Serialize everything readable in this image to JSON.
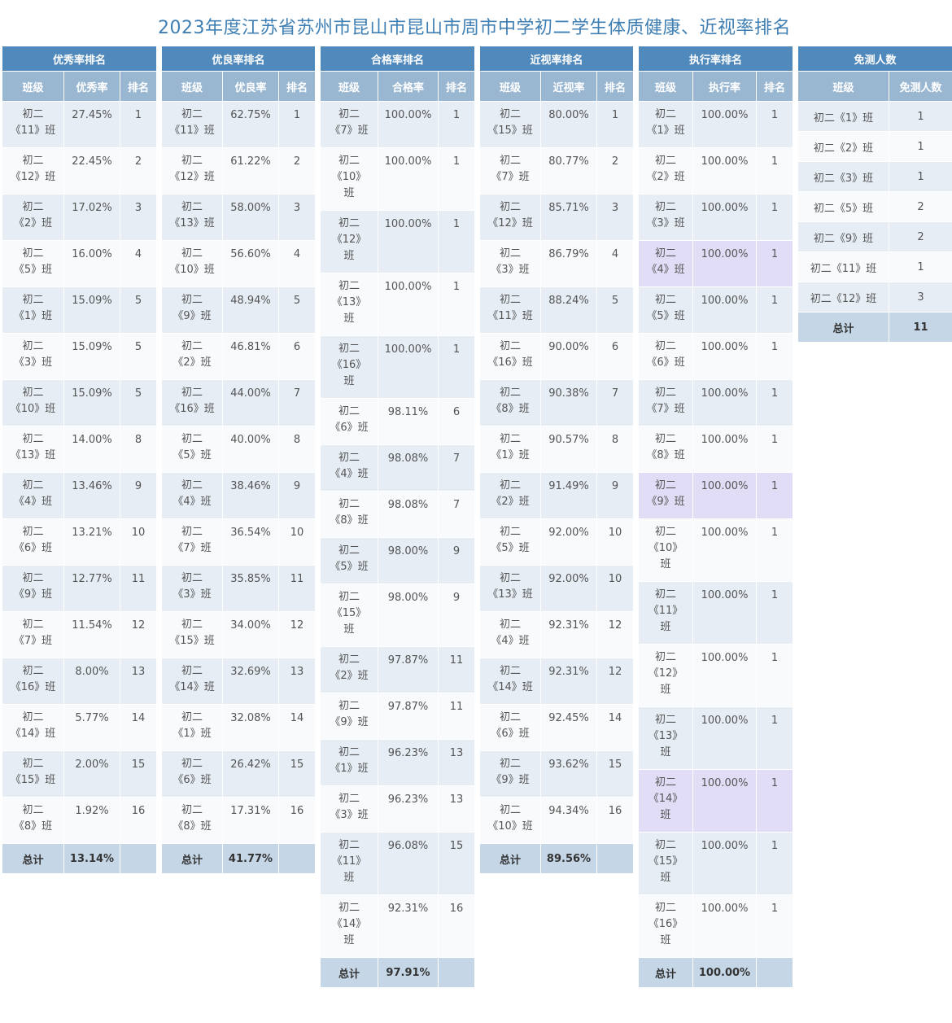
{
  "title": "2023年度江苏省苏州市昆山市昆山市周市中学初二学生体质健康、近视率排名",
  "tables": {
    "excellent": {
      "header": "优秀率排名",
      "cols": [
        "班级",
        "优秀率",
        "排名"
      ],
      "rows": [
        [
          "初二",
          "《11》班",
          "27.45%",
          "1"
        ],
        [
          "初二",
          "《12》班",
          "22.45%",
          "2"
        ],
        [
          "初二",
          "《2》班",
          "17.02%",
          "3"
        ],
        [
          "初二",
          "《5》班",
          "16.00%",
          "4"
        ],
        [
          "初二",
          "《1》班",
          "15.09%",
          "5"
        ],
        [
          "初二",
          "《3》班",
          "15.09%",
          "5"
        ],
        [
          "初二",
          "《10》班",
          "15.09%",
          "5"
        ],
        [
          "初二",
          "《13》班",
          "14.00%",
          "8"
        ],
        [
          "初二",
          "《4》班",
          "13.46%",
          "9"
        ],
        [
          "初二",
          "《6》班",
          "13.21%",
          "10"
        ],
        [
          "初二",
          "《9》班",
          "12.77%",
          "11"
        ],
        [
          "初二",
          "《7》班",
          "11.54%",
          "12"
        ],
        [
          "初二",
          "《16》班",
          "8.00%",
          "13"
        ],
        [
          "初二",
          "《14》班",
          "5.77%",
          "14"
        ],
        [
          "初二",
          "《15》班",
          "2.00%",
          "15"
        ],
        [
          "初二",
          "《8》班",
          "1.92%",
          "16"
        ]
      ],
      "total_label": "总计",
      "total": "13.14%"
    },
    "good": {
      "header": "优良率排名",
      "cols": [
        "班级",
        "优良率",
        "排名"
      ],
      "rows": [
        [
          "初二",
          "《11》班",
          "62.75%",
          "1"
        ],
        [
          "初二",
          "《12》班",
          "61.22%",
          "2"
        ],
        [
          "初二",
          "《13》班",
          "58.00%",
          "3"
        ],
        [
          "初二",
          "《10》班",
          "56.60%",
          "4"
        ],
        [
          "初二",
          "《9》班",
          "48.94%",
          "5"
        ],
        [
          "初二",
          "《2》班",
          "46.81%",
          "6"
        ],
        [
          "初二",
          "《16》班",
          "44.00%",
          "7"
        ],
        [
          "初二",
          "《5》班",
          "40.00%",
          "8"
        ],
        [
          "初二",
          "《4》班",
          "38.46%",
          "9"
        ],
        [
          "初二",
          "《7》班",
          "36.54%",
          "10"
        ],
        [
          "初二",
          "《3》班",
          "35.85%",
          "11"
        ],
        [
          "初二",
          "《15》班",
          "34.00%",
          "12"
        ],
        [
          "初二",
          "《14》班",
          "32.69%",
          "13"
        ],
        [
          "初二",
          "《1》班",
          "32.08%",
          "14"
        ],
        [
          "初二",
          "《6》班",
          "26.42%",
          "15"
        ],
        [
          "初二",
          "《8》班",
          "17.31%",
          "16"
        ]
      ],
      "total_label": "总计",
      "total": "41.77%"
    },
    "pass": {
      "header": "合格率排名",
      "cols": [
        "班级",
        "合格率",
        "排名"
      ],
      "rows": [
        [
          "初二",
          "《7》班",
          "100.00%",
          "1"
        ],
        [
          "初二",
          "《10》",
          "班",
          "100.00%",
          "1"
        ],
        [
          "初二",
          "《12》",
          "班",
          "100.00%",
          "1"
        ],
        [
          "初二",
          "《13》",
          "班",
          "100.00%",
          "1"
        ],
        [
          "初二",
          "《16》",
          "班",
          "100.00%",
          "1"
        ],
        [
          "初二",
          "《6》班",
          "98.11%",
          "6"
        ],
        [
          "初二",
          "《4》班",
          "98.08%",
          "7"
        ],
        [
          "初二",
          "《8》班",
          "98.08%",
          "7"
        ],
        [
          "初二",
          "《5》班",
          "98.00%",
          "9"
        ],
        [
          "初二",
          "《15》",
          "班",
          "98.00%",
          "9"
        ],
        [
          "初二",
          "《2》班",
          "97.87%",
          "11"
        ],
        [
          "初二",
          "《9》班",
          "97.87%",
          "11"
        ],
        [
          "初二",
          "《1》班",
          "96.23%",
          "13"
        ],
        [
          "初二",
          "《3》班",
          "96.23%",
          "13"
        ],
        [
          "初二",
          "《11》",
          "班",
          "96.08%",
          "15"
        ],
        [
          "初二",
          "《14》",
          "班",
          "92.31%",
          "16"
        ]
      ],
      "total_label": "总计",
      "total": "97.91%"
    },
    "myopia": {
      "header": "近视率排名",
      "cols": [
        "班级",
        "近视率",
        "排名"
      ],
      "rows": [
        [
          "初二",
          "《15》班",
          "80.00%",
          "1"
        ],
        [
          "初二",
          "《7》班",
          "80.77%",
          "2"
        ],
        [
          "初二",
          "《12》班",
          "85.71%",
          "3"
        ],
        [
          "初二",
          "《3》班",
          "86.79%",
          "4"
        ],
        [
          "初二",
          "《11》班",
          "88.24%",
          "5"
        ],
        [
          "初二",
          "《16》班",
          "90.00%",
          "6"
        ],
        [
          "初二",
          "《8》班",
          "90.38%",
          "7"
        ],
        [
          "初二",
          "《1》班",
          "90.57%",
          "8"
        ],
        [
          "初二",
          "《2》班",
          "91.49%",
          "9"
        ],
        [
          "初二",
          "《5》班",
          "92.00%",
          "10"
        ],
        [
          "初二",
          "《13》班",
          "92.00%",
          "10"
        ],
        [
          "初二",
          "《4》班",
          "92.31%",
          "12"
        ],
        [
          "初二",
          "《14》班",
          "92.31%",
          "12"
        ],
        [
          "初二",
          "《6》班",
          "92.45%",
          "14"
        ],
        [
          "初二",
          "《9》班",
          "93.62%",
          "15"
        ],
        [
          "初二",
          "《10》班",
          "94.34%",
          "16"
        ]
      ],
      "total_label": "总计",
      "total": "89.56%"
    },
    "execution": {
      "header": "执行率排名",
      "cols": [
        "班级",
        "执行率",
        "排名"
      ],
      "rows": [
        [
          "初二",
          "《1》班",
          "100.00%",
          "1"
        ],
        [
          "初二",
          "《2》班",
          "100.00%",
          "1"
        ],
        [
          "初二",
          "《3》班",
          "100.00%",
          "1"
        ],
        [
          "初二",
          "《4》班",
          "100.00%",
          "1"
        ],
        [
          "初二",
          "《5》班",
          "100.00%",
          "1"
        ],
        [
          "初二",
          "《6》班",
          "100.00%",
          "1"
        ],
        [
          "初二",
          "《7》班",
          "100.00%",
          "1"
        ],
        [
          "初二",
          "《8》班",
          "100.00%",
          "1"
        ],
        [
          "初二",
          "《9》班",
          "100.00%",
          "1"
        ],
        [
          "初二",
          "《10》",
          "班",
          "100.00%",
          "1"
        ],
        [
          "初二",
          "《11》",
          "班",
          "100.00%",
          "1"
        ],
        [
          "初二",
          "《12》",
          "班",
          "100.00%",
          "1"
        ],
        [
          "初二",
          "《13》",
          "班",
          "100.00%",
          "1"
        ],
        [
          "初二",
          "《14》",
          "班",
          "100.00%",
          "1"
        ],
        [
          "初二",
          "《15》",
          "班",
          "100.00%",
          "1"
        ],
        [
          "初二",
          "《16》",
          "班",
          "100.00%",
          "1"
        ]
      ],
      "highlight_rows": [
        3,
        8,
        13
      ],
      "highlight_color": "#e2ddf7",
      "total_label": "总计",
      "total": "100.00%"
    },
    "exempt": {
      "header": "免测人数",
      "cols": [
        "班级",
        "免测人数"
      ],
      "rows": [
        [
          "初二《1》班",
          "1"
        ],
        [
          "初二《2》班",
          "1"
        ],
        [
          "初二《3》班",
          "1"
        ],
        [
          "初二《5》班",
          "2"
        ],
        [
          "初二《9》班",
          "2"
        ],
        [
          "初二《11》班",
          "1"
        ],
        [
          "初二《12》班",
          "3"
        ]
      ],
      "total_label": "总计",
      "total": "11"
    }
  },
  "colors": {
    "title": "#3f7fb3",
    "group_header": "#5089bb",
    "sub_header": "#9ab7d2",
    "row_odd": "#e6edf5",
    "row_even": "#f8fafc",
    "total_row": "#c5d6e6"
  }
}
